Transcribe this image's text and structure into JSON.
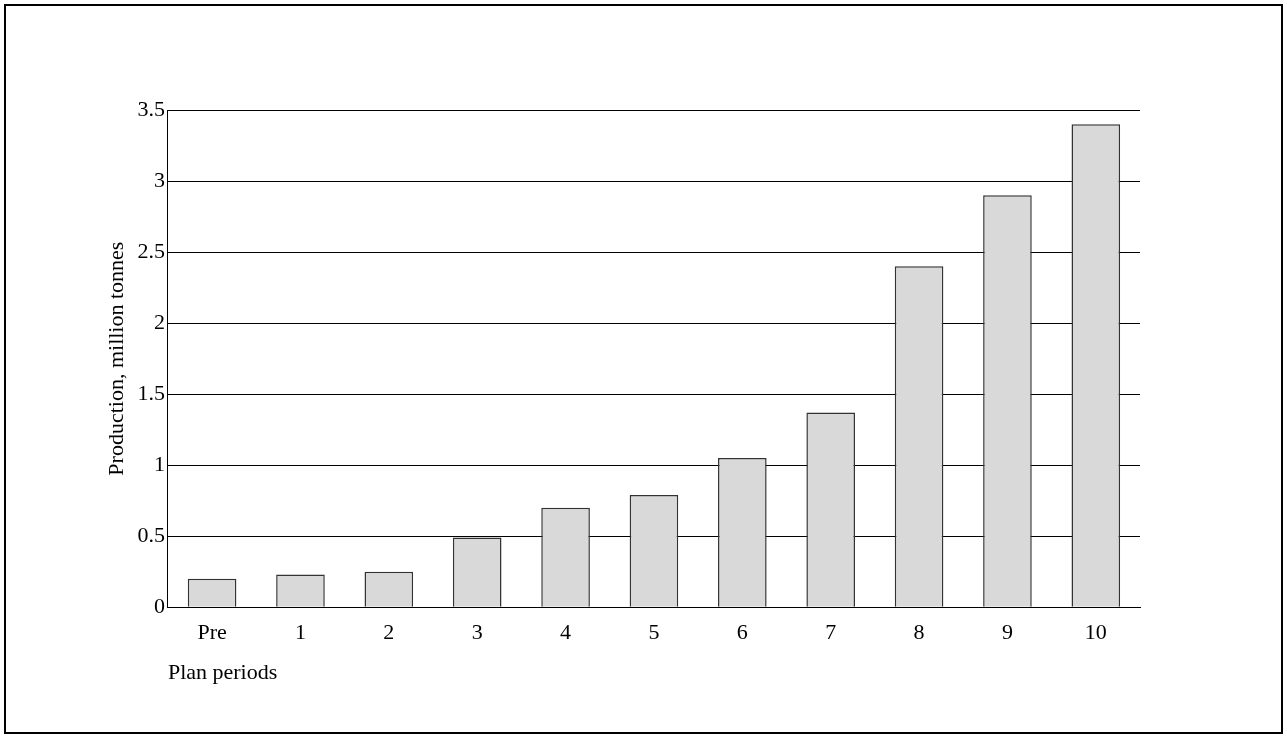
{
  "chart_data": {
    "type": "bar",
    "xlabel": "Plan periods",
    "ylabel": "Production, million tonnes",
    "categories": [
      "Pre",
      "1",
      "2",
      "3",
      "4",
      "5",
      "6",
      "7",
      "8",
      "9",
      "10"
    ],
    "values": [
      0.2,
      0.23,
      0.25,
      0.49,
      0.7,
      0.79,
      1.05,
      1.37,
      2.4,
      2.9,
      3.4
    ],
    "color": "#d9d9d9",
    "ylim": [
      0,
      3.5
    ],
    "yticks": [
      0,
      0.5,
      1,
      1.5,
      2,
      2.5,
      3,
      3.5
    ],
    "grid": "y",
    "legend": false
  }
}
